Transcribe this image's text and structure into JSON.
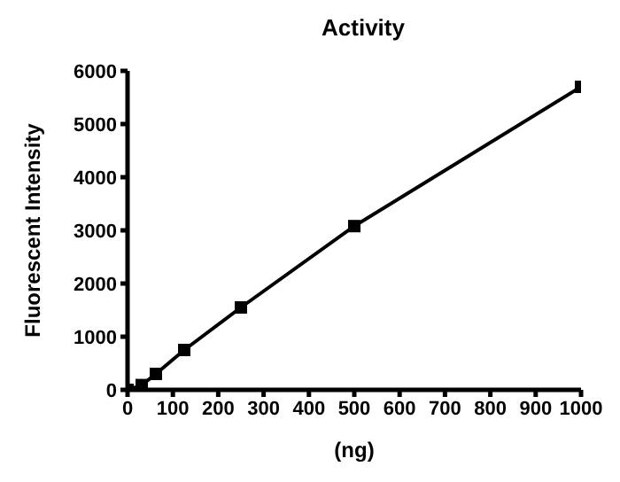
{
  "chart_data": {
    "type": "line",
    "title": "Activity",
    "xlabel": "(ng)",
    "ylabel": "Fluorescent Intensity",
    "x": [
      0,
      31.25,
      62.5,
      125,
      250,
      500,
      1000
    ],
    "series": [
      {
        "color": "#000000",
        "values": [
          0,
          90,
          300,
          750,
          1550,
          3080,
          5700
        ]
      }
    ],
    "xlim": [
      0,
      1000
    ],
    "xticks": [
      0,
      100,
      200,
      300,
      400,
      500,
      600,
      700,
      800,
      900,
      1000
    ],
    "ylim": [
      0,
      6000
    ],
    "yticks": [
      0,
      1000,
      2000,
      3000,
      4000,
      5000,
      6000
    ],
    "grid": false,
    "legend": false,
    "marker": "square",
    "line_style": "solid"
  }
}
